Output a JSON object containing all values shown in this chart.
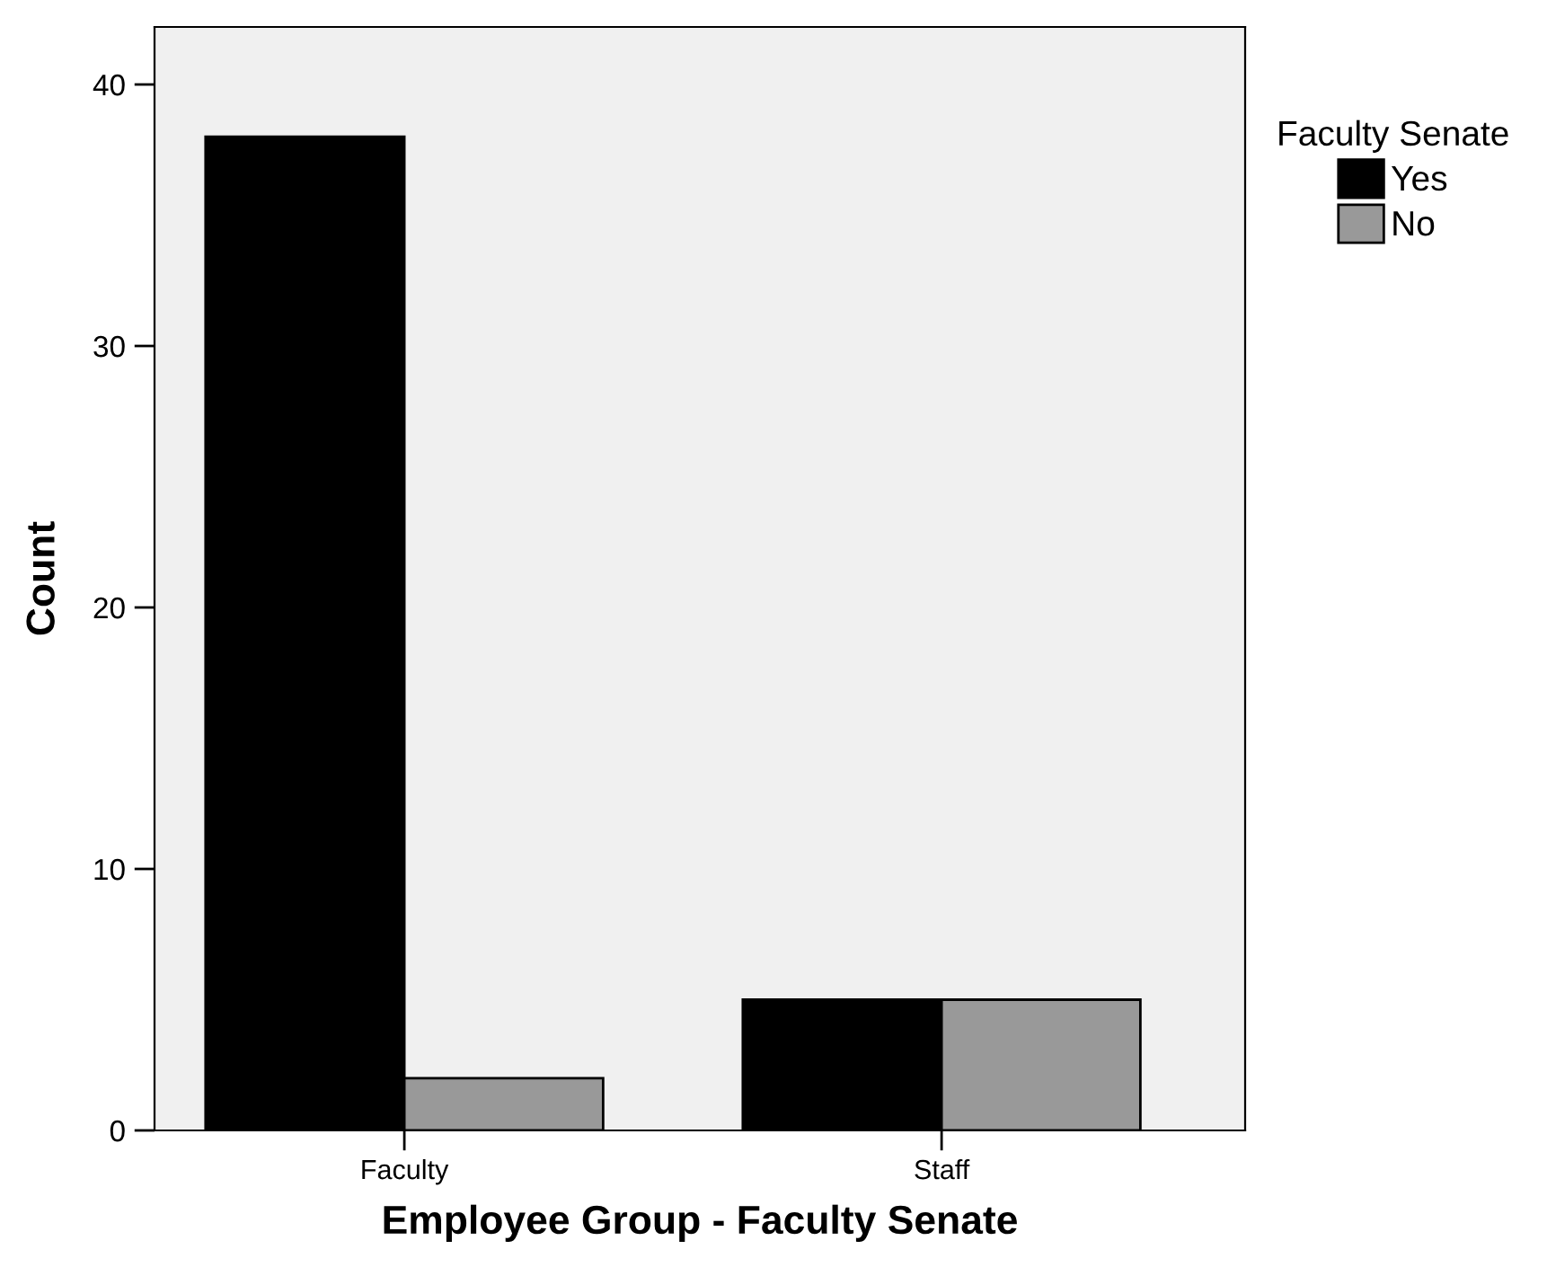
{
  "chart_data": {
    "type": "bar",
    "xlabel": "Employee Group - Faculty Senate",
    "ylabel": "Count",
    "legend_title": "Faculty Senate",
    "categories": [
      "Faculty",
      "Staff"
    ],
    "series": [
      {
        "name": "Yes",
        "color": "#000000",
        "values": [
          38,
          5
        ]
      },
      {
        "name": "No",
        "color": "#999999",
        "values": [
          2,
          5
        ]
      }
    ],
    "ylim": [
      0,
      42.2
    ],
    "yticks": [
      0,
      10,
      20,
      30,
      40
    ],
    "grid": false,
    "legend": "right"
  }
}
